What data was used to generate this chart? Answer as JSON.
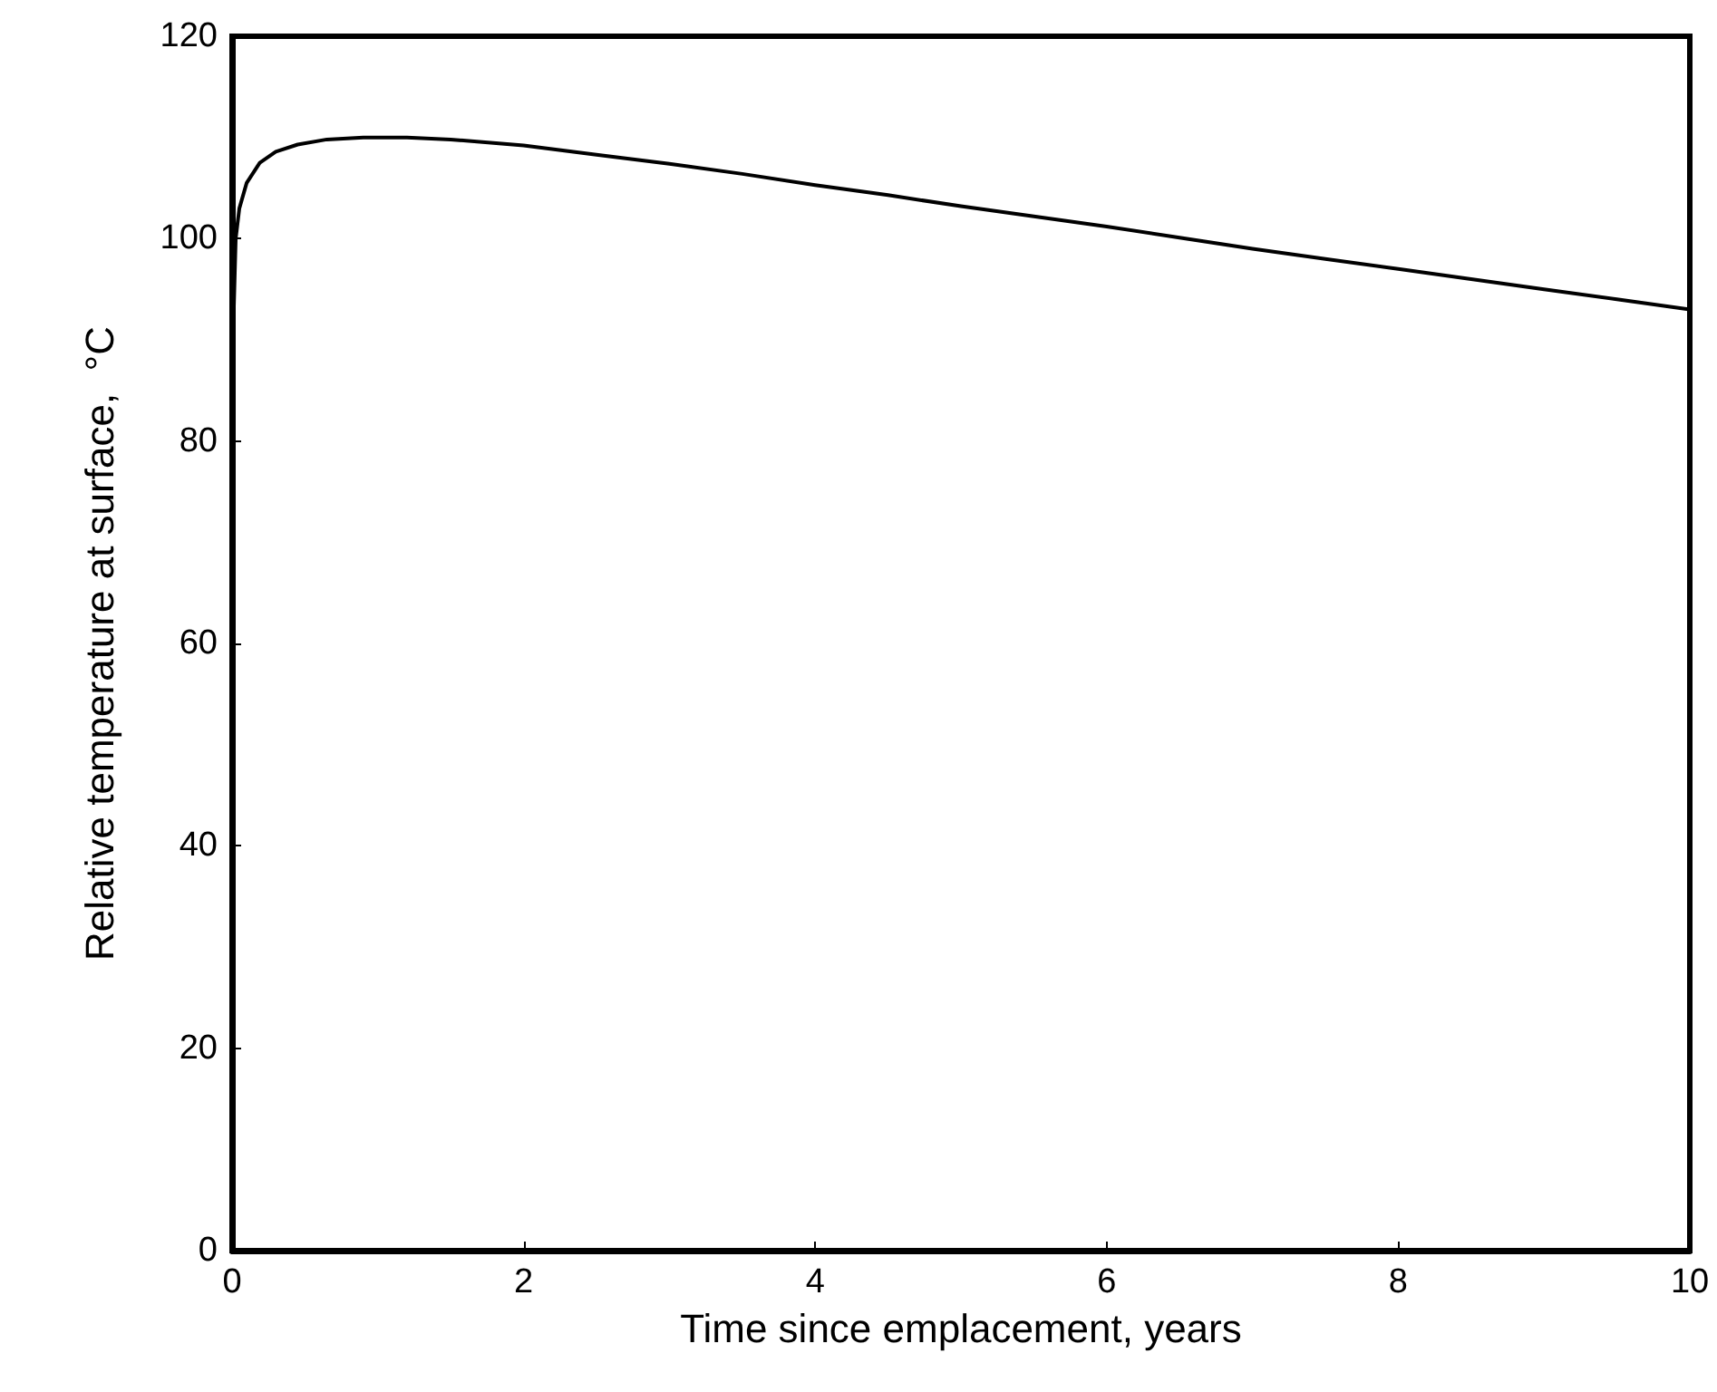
{
  "chart_data": {
    "type": "line",
    "xlabel": "Time since emplacement, years",
    "ylabel": "Relative temperature at surface,  °C",
    "x": [
      0,
      0.01,
      0.025,
      0.05,
      0.1,
      0.19,
      0.3,
      0.45,
      0.65,
      0.9,
      1.2,
      1.5,
      2,
      2.5,
      3,
      3.5,
      4,
      4.5,
      5,
      5.5,
      6,
      6.5,
      7,
      7.5,
      8,
      8.5,
      9,
      9.5,
      10
    ],
    "series": [
      {
        "color": "#000000",
        "values": [
          82,
          92,
          100,
          103,
          105.5,
          107.5,
          108.6,
          109.3,
          109.8,
          110,
          110,
          109.8,
          109.2,
          108.3,
          107.4,
          106.4,
          105.3,
          104.3,
          103.2,
          102.2,
          101.2,
          100.1,
          99,
          98,
          97,
          96,
          95,
          94,
          93
        ]
      }
    ],
    "xlim": [
      0,
      10
    ],
    "xticks": [
      0,
      2,
      4,
      6,
      8,
      10
    ],
    "ylim": [
      0,
      120
    ],
    "yticks": [
      0,
      20,
      40,
      60,
      80,
      100,
      120
    ],
    "grid": false,
    "marker": "none",
    "line_style": "solid"
  }
}
